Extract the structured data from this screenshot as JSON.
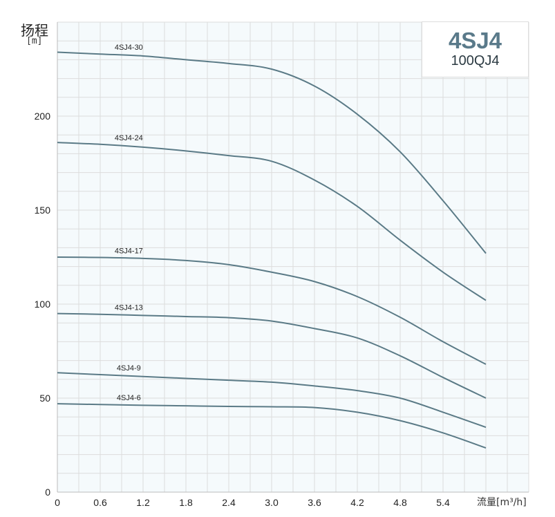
{
  "chart_data": {
    "type": "line",
    "title": "4SJ4",
    "subtitle": "100QJ4",
    "ylabel": "扬程",
    "yunit": "[m]",
    "xlabel": "流量[m³/h]",
    "xlim": [
      0,
      6.6
    ],
    "ylim": [
      0,
      250
    ],
    "grid": true,
    "x_ticks": [
      "0",
      "0.6",
      "1.2",
      "1.8",
      "2.4",
      "3.0",
      "3.6",
      "4.2",
      "4.8",
      "5.4"
    ],
    "y_ticks": [
      "0",
      "50",
      "100",
      "150",
      "200"
    ],
    "x": [
      0,
      0.6,
      1.2,
      1.8,
      2.4,
      3.0,
      3.6,
      4.2,
      4.8,
      5.4,
      6.0
    ],
    "series": [
      {
        "name": "4SJ4-30",
        "values": [
          234,
          233,
          232,
          230,
          228,
          225,
          216,
          201,
          181,
          155,
          127
        ]
      },
      {
        "name": "4SJ4-24",
        "values": [
          186,
          185,
          183.5,
          181.5,
          179,
          176,
          166,
          152,
          134,
          117,
          102
        ]
      },
      {
        "name": "4SJ4-17",
        "values": [
          125,
          124.8,
          124.3,
          123.2,
          121,
          117,
          112,
          104,
          93,
          80,
          68
        ]
      },
      {
        "name": "4SJ4-13",
        "values": [
          95,
          94.6,
          94,
          93.4,
          92.8,
          91,
          87,
          82,
          72.5,
          61,
          50
        ]
      },
      {
        "name": "4SJ4-9",
        "values": [
          63.5,
          62.5,
          61.5,
          60.5,
          59.5,
          58.5,
          56.5,
          54,
          50,
          42.5,
          34.5
        ]
      },
      {
        "name": "4SJ4-6",
        "values": [
          47,
          46.6,
          46.2,
          45.9,
          45.6,
          45.4,
          45,
          42.5,
          38,
          31.5,
          23.5
        ]
      }
    ],
    "line_color": "#5a7a86"
  }
}
